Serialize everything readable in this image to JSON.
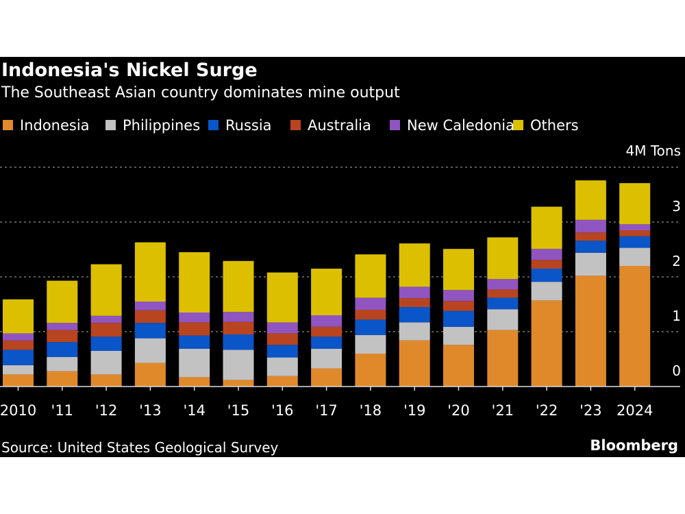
{
  "chart_data": {
    "type": "bar",
    "stacked": true,
    "title": "Indonesia's Nickel Surge",
    "subtitle": "The Southeast Asian country dominates mine output",
    "source": "Source: United States Geological Survey",
    "brand": "Bloomberg",
    "ylabel": "",
    "yunit_label": "4M Tons",
    "ylim": [
      0,
      4
    ],
    "yticks": [
      "0",
      "1",
      "2",
      "3"
    ],
    "grid": true,
    "legend_position": "top-left",
    "categories": [
      "2010",
      "'11",
      "'12",
      "'13",
      "'14",
      "'15",
      "'16",
      "'17",
      "'18",
      "'19",
      "'20",
      "'21",
      "'22",
      "'23",
      "2024"
    ],
    "series": [
      {
        "name": "Indonesia",
        "color": "#e0892a",
        "values": [
          0.22,
          0.28,
          0.22,
          0.43,
          0.17,
          0.12,
          0.19,
          0.33,
          0.6,
          0.84,
          0.76,
          1.03,
          1.57,
          2.02,
          2.2
        ]
      },
      {
        "name": "Philippines",
        "color": "#c2c2c2",
        "values": [
          0.17,
          0.26,
          0.43,
          0.45,
          0.52,
          0.55,
          0.34,
          0.36,
          0.34,
          0.33,
          0.33,
          0.38,
          0.34,
          0.42,
          0.33
        ]
      },
      {
        "name": "Russia",
        "color": "#0a55c8",
        "values": [
          0.28,
          0.27,
          0.26,
          0.28,
          0.24,
          0.28,
          0.23,
          0.22,
          0.28,
          0.28,
          0.29,
          0.21,
          0.24,
          0.22,
          0.21
        ]
      },
      {
        "name": "Australia",
        "color": "#b8451f",
        "values": [
          0.17,
          0.22,
          0.25,
          0.23,
          0.24,
          0.23,
          0.21,
          0.18,
          0.18,
          0.16,
          0.18,
          0.15,
          0.16,
          0.15,
          0.11
        ]
      },
      {
        "name": "New Caledonia",
        "color": "#9055c0",
        "values": [
          0.13,
          0.13,
          0.13,
          0.16,
          0.18,
          0.18,
          0.2,
          0.21,
          0.22,
          0.21,
          0.2,
          0.19,
          0.2,
          0.23,
          0.11
        ]
      },
      {
        "name": "Others",
        "color": "#dcc000",
        "values": [
          0.62,
          0.77,
          0.94,
          1.08,
          1.1,
          0.93,
          0.91,
          0.85,
          0.79,
          0.79,
          0.75,
          0.76,
          0.77,
          0.72,
          0.75
        ]
      }
    ]
  }
}
